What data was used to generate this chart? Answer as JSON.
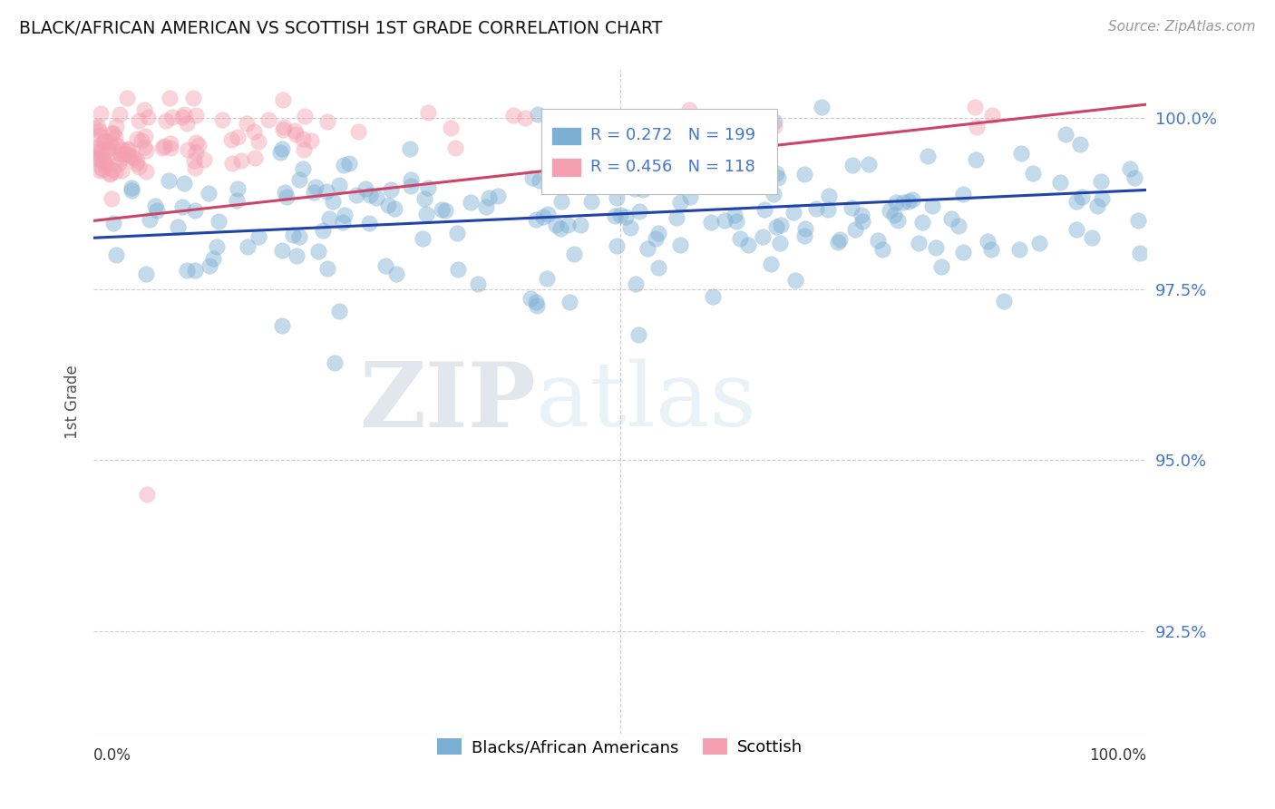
{
  "title": "BLACK/AFRICAN AMERICAN VS SCOTTISH 1ST GRADE CORRELATION CHART",
  "source": "Source: ZipAtlas.com",
  "ylabel": "1st Grade",
  "ytick_labels": [
    "92.5%",
    "95.0%",
    "97.5%",
    "100.0%"
  ],
  "ytick_values": [
    0.925,
    0.95,
    0.975,
    1.0
  ],
  "xlim": [
    0.0,
    1.0
  ],
  "ylim": [
    0.91,
    1.007
  ],
  "blue_R": 0.272,
  "blue_N": 199,
  "pink_R": 0.456,
  "pink_N": 118,
  "blue_color": "#7BAFD4",
  "pink_color": "#F4A0B0",
  "blue_line_color": "#2244AA",
  "pink_line_color": "#CC4466",
  "legend_label_blue": "Blacks/African Americans",
  "legend_label_pink": "Scottish",
  "watermark_zip": "ZIP",
  "watermark_atlas": "atlas",
  "background_color": "#FFFFFF",
  "seed": 12,
  "blue_line_y0": 0.9825,
  "blue_line_y1": 0.9895,
  "pink_line_y0": 0.985,
  "pink_line_y1": 1.002
}
